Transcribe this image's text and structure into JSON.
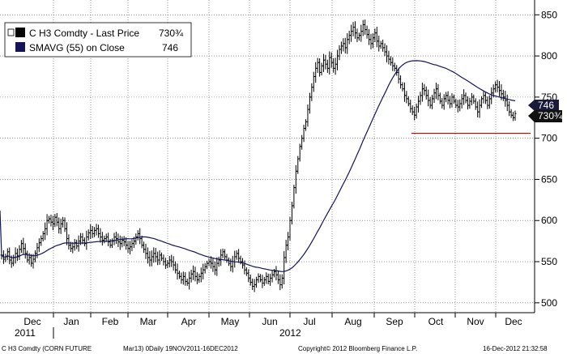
{
  "chart_data": {
    "type": "ohlc",
    "y_ticks": [
      500,
      550,
      600,
      650,
      700,
      750,
      800,
      850
    ],
    "ylim": [
      488,
      868
    ],
    "x_months": [
      "Dec",
      "Jan",
      "Feb",
      "Mar",
      "Apr",
      "May",
      "Jun",
      "Jul",
      "Aug",
      "Sep",
      "Oct",
      "Nov",
      "Dec"
    ],
    "x_years": [
      "2011",
      "2012"
    ],
    "legend": [
      {
        "label": "C H3 Comdty - Last Price",
        "value": "730¾",
        "color": "#000000"
      },
      {
        "label": "SMAVG (55) on Close",
        "value": "746",
        "color": "#14145a"
      }
    ],
    "last_price_tag": "730¾",
    "sma_tag": "746",
    "support_level": 706,
    "colors": {
      "price": "#000000",
      "sma": "#14145a",
      "support": "#cc0000",
      "tag_bg": "#1a1a3a"
    },
    "close_series": [
      558,
      553,
      556,
      562,
      552,
      548,
      555,
      560,
      557,
      565,
      572,
      566,
      560,
      552,
      555,
      548,
      553,
      560,
      567,
      573,
      578,
      584,
      590,
      600,
      602,
      598,
      596,
      604,
      598,
      590,
      596,
      600,
      590,
      578,
      570,
      566,
      568,
      573,
      569,
      575,
      580,
      576,
      572,
      580,
      585,
      588,
      584,
      588,
      590,
      584,
      580,
      576,
      578,
      580,
      574,
      570,
      575,
      580,
      578,
      574,
      572,
      576,
      574,
      570,
      566,
      568,
      572,
      575,
      580,
      584,
      578,
      570,
      565,
      560,
      555,
      552,
      556,
      560,
      556,
      552,
      558,
      554,
      550,
      546,
      548,
      552,
      550,
      546,
      540,
      536,
      532,
      528,
      532,
      526,
      524,
      530,
      535,
      538,
      532,
      528,
      532,
      536,
      540,
      544,
      548,
      550,
      548,
      544,
      540,
      548,
      552,
      558,
      562,
      556,
      552,
      548,
      544,
      550,
      556,
      560,
      554,
      550,
      546,
      540,
      536,
      530,
      525,
      520,
      522,
      528,
      532,
      528,
      524,
      528,
      532,
      526,
      530,
      534,
      538,
      534,
      528,
      522,
      530,
      555,
      570,
      580,
      600,
      618,
      640,
      660,
      675,
      690,
      700,
      712,
      720,
      735,
      750,
      762,
      775,
      785,
      792,
      780,
      788,
      795,
      790,
      785,
      798,
      792,
      785,
      790,
      800,
      808,
      812,
      815,
      810,
      820,
      825,
      830,
      835,
      828,
      822,
      825,
      830,
      838,
      832,
      826,
      820,
      815,
      822,
      828,
      818,
      812,
      815,
      810,
      805,
      800,
      796,
      792,
      788,
      785,
      780,
      772,
      765,
      760,
      752,
      748,
      742,
      736,
      732,
      728,
      738,
      745,
      752,
      760,
      758,
      752,
      746,
      740,
      748,
      755,
      760,
      752,
      745,
      740,
      748,
      752,
      746,
      742,
      750,
      745,
      740,
      738,
      742,
      748,
      752,
      746,
      740,
      745,
      750,
      745,
      738,
      732,
      740,
      748,
      752,
      746,
      740,
      748,
      755,
      760,
      765,
      762,
      758,
      754,
      750,
      746,
      740,
      732,
      728,
      725,
      730
    ]
  }
}
